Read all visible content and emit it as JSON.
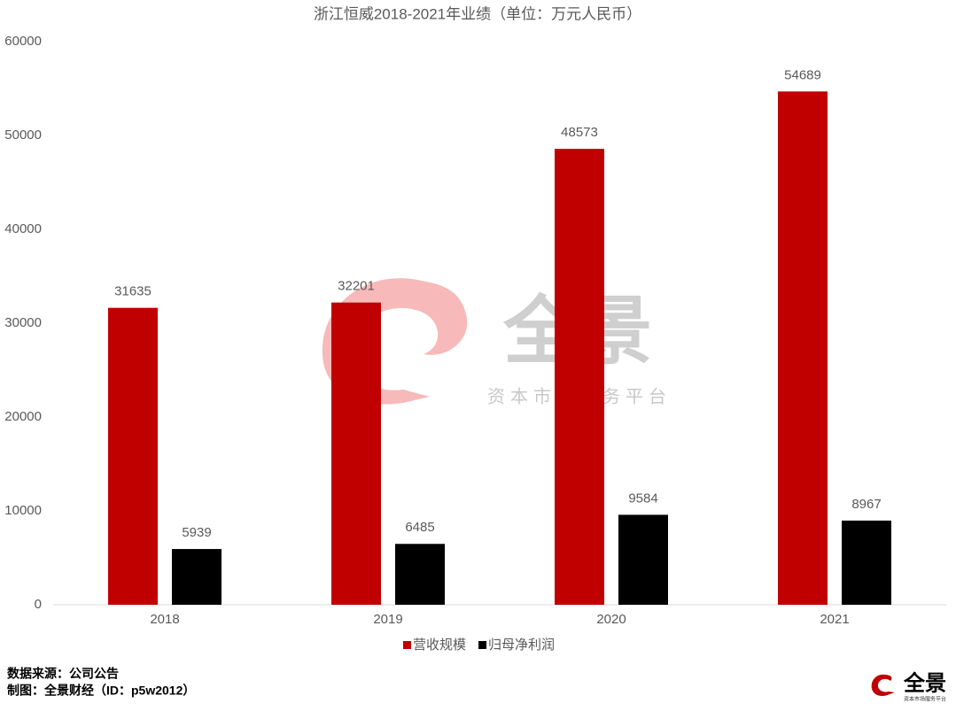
{
  "chart_data": {
    "type": "bar",
    "title": "浙江恒威2018-2021年业绩（单位：万元人民币）",
    "categories": [
      "2018",
      "2019",
      "2020",
      "2021"
    ],
    "series": [
      {
        "name": "营收规模",
        "color": "#c00000",
        "values": [
          31635,
          32201,
          48573,
          54689
        ]
      },
      {
        "name": "归母净利润",
        "color": "#000000",
        "values": [
          5939,
          6485,
          9584,
          8967
        ]
      }
    ],
    "ylim": [
      0,
      60000
    ],
    "yticks": [
      0,
      10000,
      20000,
      30000,
      40000,
      50000,
      60000
    ],
    "grid": false,
    "legend": "bottom"
  },
  "footer": {
    "source": "数据来源：公司公告",
    "credit": "制图：全景财经（ID：p5w2012）"
  },
  "watermark": {
    "title": "全景",
    "subtitle": "资本市场服务平台"
  }
}
